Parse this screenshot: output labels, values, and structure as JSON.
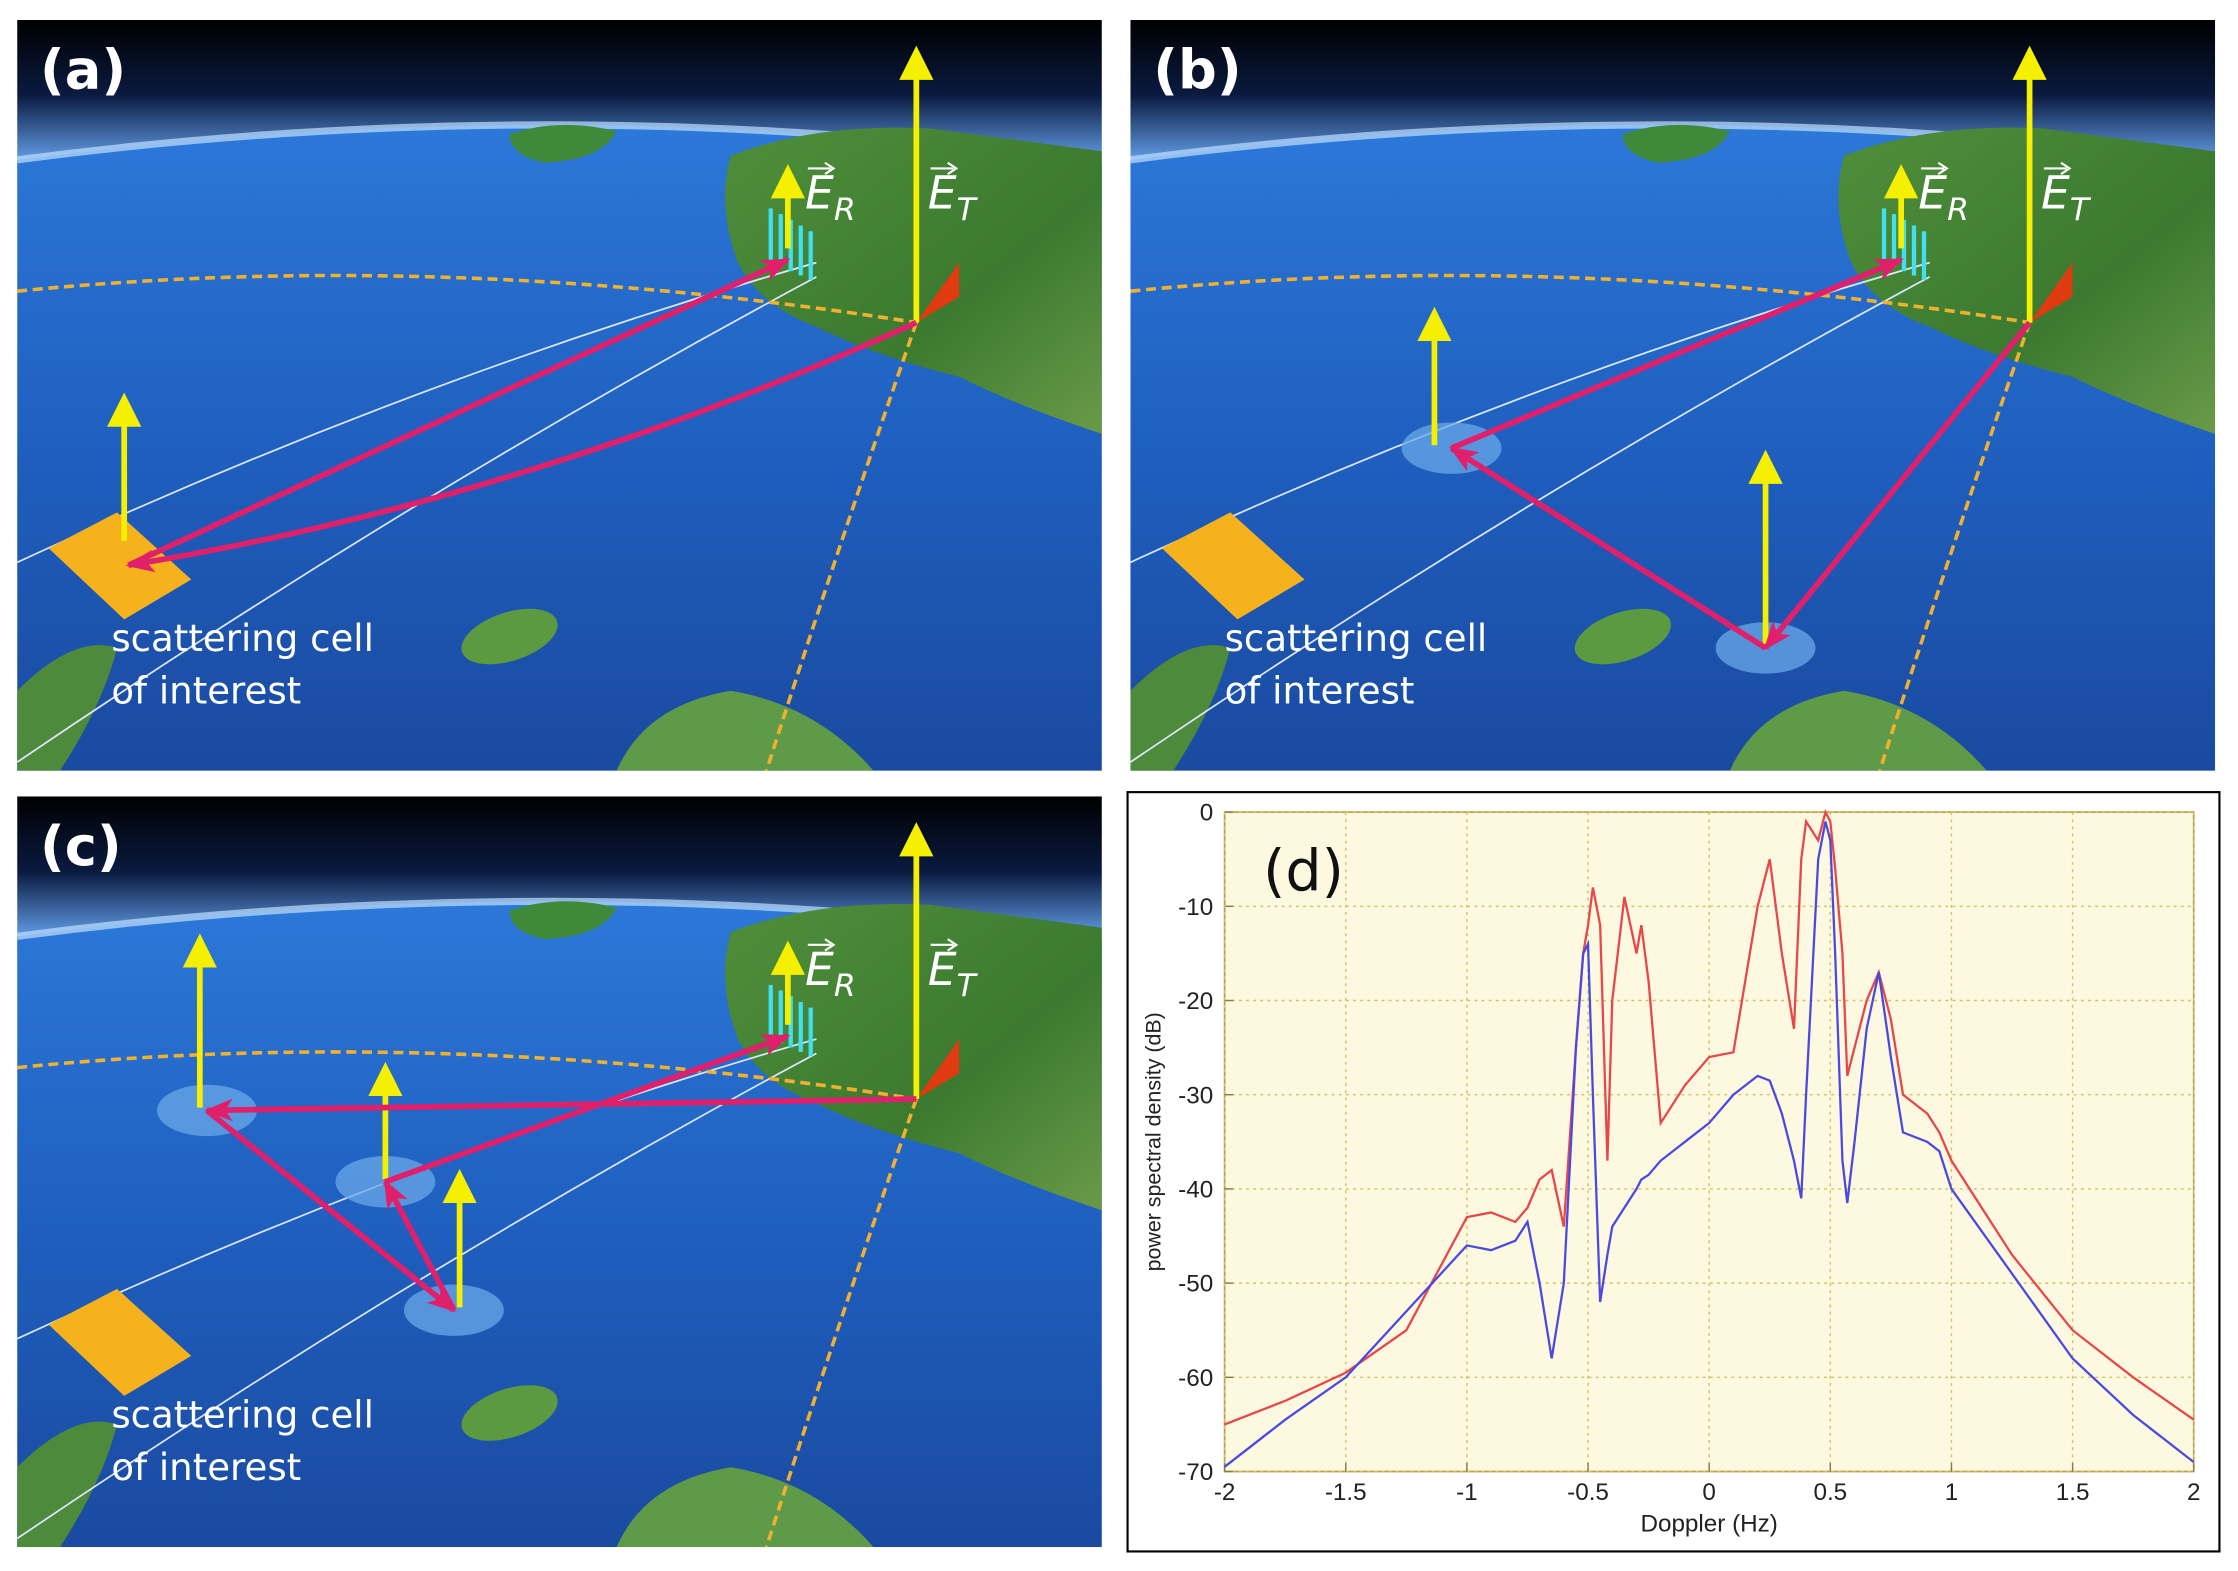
{
  "panels": [
    {
      "label": "(a)",
      "receiver_field": {
        "symbol": "E",
        "subscript": "R"
      },
      "transmitter_field": {
        "symbol": "E",
        "subscript": "T"
      },
      "caption": [
        "scattering cell",
        "of interest"
      ]
    },
    {
      "label": "(b)",
      "receiver_field": {
        "symbol": "E",
        "subscript": "R"
      },
      "transmitter_field": {
        "symbol": "E",
        "subscript": "T"
      },
      "caption": [
        "scattering cell",
        "of interest"
      ]
    },
    {
      "label": "(c)",
      "receiver_field": {
        "symbol": "E",
        "subscript": "R"
      },
      "transmitter_field": {
        "symbol": "E",
        "subscript": "T"
      },
      "caption": [
        "scattering cell",
        "of interest"
      ]
    }
  ],
  "chart_panel": {
    "label": "(d)"
  },
  "chart_data": {
    "type": "line",
    "xlabel": "Doppler (Hz)",
    "ylabel": "power spectral density (dB)",
    "x": [
      -2,
      -1.75,
      -1.5,
      -1.25,
      -1,
      -0.9,
      -0.8,
      -0.75,
      -0.7,
      -0.65,
      -0.6,
      -0.55,
      -0.52,
      -0.5,
      -0.48,
      -0.45,
      -0.42,
      -0.4,
      -0.35,
      -0.3,
      -0.28,
      -0.25,
      -0.2,
      -0.1,
      0,
      0.1,
      0.2,
      0.25,
      0.3,
      0.35,
      0.38,
      0.4,
      0.45,
      0.48,
      0.5,
      0.52,
      0.55,
      0.57,
      0.6,
      0.65,
      0.7,
      0.75,
      0.8,
      0.9,
      0.95,
      1,
      1.25,
      1.5,
      1.75,
      2
    ],
    "series": [
      {
        "color": "#e8474a",
        "values": [
          -65,
          -62.5,
          -59.5,
          -55,
          -43,
          -42.5,
          -43.5,
          -42,
          -39,
          -38,
          -44,
          -25,
          -15,
          -12,
          -8,
          -12,
          -37,
          -20,
          -9,
          -15,
          -12,
          -18,
          -33,
          -29,
          -26,
          -25.5,
          -10,
          -5,
          -15,
          -23,
          -5,
          -1,
          -3,
          0,
          -1,
          -6,
          -15,
          -28,
          -25,
          -20,
          -17,
          -22,
          -30,
          -32,
          -34,
          -37,
          -47,
          -55,
          -60,
          -64.5
        ]
      },
      {
        "color": "#4a4ae0",
        "values": [
          -69.5,
          -64.5,
          -60,
          -53,
          -46,
          -46.5,
          -45.5,
          -43.5,
          -50,
          -58,
          -50,
          -25,
          -15,
          -14,
          -30,
          -52,
          -47,
          -44,
          -42,
          -40,
          -39,
          -38.5,
          -37,
          -35,
          -33,
          -30,
          -28,
          -28.5,
          -32,
          -37,
          -41,
          -30,
          -5,
          -1,
          -3,
          -15,
          -37,
          -41.5,
          -35,
          -23,
          -17,
          -26,
          -34,
          -35,
          -36,
          -40,
          -49,
          -58,
          -64,
          -69
        ]
      }
    ],
    "xlim": [
      -2,
      2
    ],
    "xticks": [
      -2,
      -1.5,
      -1,
      -0.5,
      0,
      0.5,
      1,
      1.5,
      2
    ],
    "ylim": [
      -70,
      0
    ],
    "yticks": [
      -70,
      -60,
      -50,
      -40,
      -30,
      -20,
      -10,
      0
    ],
    "grid": true
  }
}
